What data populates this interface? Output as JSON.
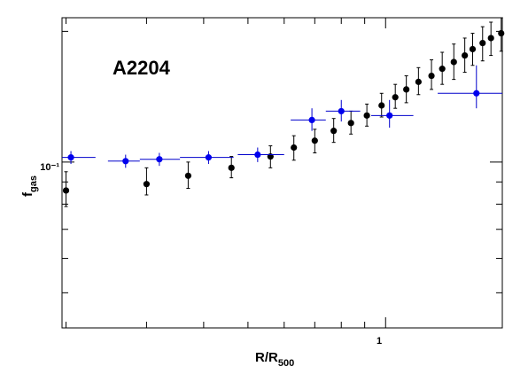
{
  "chart_data": {
    "type": "scatter",
    "annotation": "A2204",
    "xlabel": {
      "main": "R/R",
      "sub": "500"
    },
    "ylabel": {
      "main": "f",
      "sub": "gas"
    },
    "x_scale": "log",
    "y_scale": "log",
    "xlim": [
      0.196,
      1.8
    ],
    "ylim": [
      0.0415,
      0.215
    ],
    "x_tick_labels": [
      {
        "value": 1,
        "label": "1"
      }
    ],
    "y_tick_labels": [
      {
        "value": 0.1,
        "label": "10⁻¹"
      }
    ],
    "grid": false,
    "colors": {
      "series_a": "#000000",
      "series_b": "#0000ee",
      "series_b_bar": "#0000cc"
    },
    "series": [
      {
        "color": "#000000",
        "points": [
          {
            "x": 0.2,
            "y": 0.086,
            "ylo": 0.079,
            "yhi": 0.095
          },
          {
            "x": 0.3,
            "y": 0.089,
            "ylo": 0.084,
            "yhi": 0.097
          },
          {
            "x": 0.37,
            "y": 0.093,
            "ylo": 0.087,
            "yhi": 0.1
          },
          {
            "x": 0.46,
            "y": 0.097,
            "ylo": 0.092,
            "yhi": 0.103
          },
          {
            "x": 0.56,
            "y": 0.103,
            "ylo": 0.097,
            "yhi": 0.109
          },
          {
            "x": 0.63,
            "y": 0.108,
            "ylo": 0.101,
            "yhi": 0.115
          },
          {
            "x": 0.7,
            "y": 0.112,
            "ylo": 0.105,
            "yhi": 0.119
          },
          {
            "x": 0.77,
            "y": 0.118,
            "ylo": 0.111,
            "yhi": 0.126
          },
          {
            "x": 0.84,
            "y": 0.123,
            "ylo": 0.116,
            "yhi": 0.131
          },
          {
            "x": 0.91,
            "y": 0.128,
            "ylo": 0.121,
            "yhi": 0.136
          },
          {
            "x": 0.98,
            "y": 0.135,
            "ylo": 0.127,
            "yhi": 0.144
          },
          {
            "x": 1.05,
            "y": 0.141,
            "ylo": 0.133,
            "yhi": 0.151
          },
          {
            "x": 1.11,
            "y": 0.147,
            "ylo": 0.137,
            "yhi": 0.158
          },
          {
            "x": 1.18,
            "y": 0.153,
            "ylo": 0.143,
            "yhi": 0.165
          },
          {
            "x": 1.26,
            "y": 0.158,
            "ylo": 0.147,
            "yhi": 0.172
          },
          {
            "x": 1.33,
            "y": 0.164,
            "ylo": 0.151,
            "yhi": 0.179
          },
          {
            "x": 1.41,
            "y": 0.17,
            "ylo": 0.155,
            "yhi": 0.187
          },
          {
            "x": 1.49,
            "y": 0.176,
            "ylo": 0.161,
            "yhi": 0.193
          },
          {
            "x": 1.55,
            "y": 0.182,
            "ylo": 0.167,
            "yhi": 0.198
          },
          {
            "x": 1.63,
            "y": 0.188,
            "ylo": 0.171,
            "yhi": 0.205
          },
          {
            "x": 1.7,
            "y": 0.193,
            "ylo": 0.176,
            "yhi": 0.21
          },
          {
            "x": 1.79,
            "y": 0.198,
            "ylo": 0.18,
            "yhi": 0.215
          }
        ]
      },
      {
        "color": "#0000ee",
        "points": [
          {
            "x": 0.205,
            "xlo": 0.196,
            "xhi": 0.232,
            "y": 0.1025,
            "ylo": 0.099,
            "yhi": 0.106
          },
          {
            "x": 0.27,
            "xlo": 0.247,
            "xhi": 0.29,
            "y": 0.1005,
            "ylo": 0.097,
            "yhi": 0.104
          },
          {
            "x": 0.32,
            "xlo": 0.29,
            "xhi": 0.355,
            "y": 0.1015,
            "ylo": 0.098,
            "yhi": 0.105
          },
          {
            "x": 0.41,
            "xlo": 0.355,
            "xhi": 0.465,
            "y": 0.1025,
            "ylo": 0.099,
            "yhi": 0.106
          },
          {
            "x": 0.525,
            "xlo": 0.475,
            "xhi": 0.6,
            "y": 0.104,
            "ylo": 0.1,
            "yhi": 0.108
          },
          {
            "x": 0.69,
            "xlo": 0.62,
            "xhi": 0.74,
            "y": 0.125,
            "ylo": 0.118,
            "yhi": 0.133
          },
          {
            "x": 0.8,
            "xlo": 0.74,
            "xhi": 0.88,
            "y": 0.131,
            "ylo": 0.124,
            "yhi": 0.139
          },
          {
            "x": 1.02,
            "xlo": 0.93,
            "xhi": 1.15,
            "y": 0.128,
            "ylo": 0.12,
            "yhi": 0.139
          },
          {
            "x": 1.58,
            "xlo": 1.3,
            "xhi": 1.8,
            "y": 0.144,
            "ylo": 0.133,
            "yhi": 0.167
          }
        ]
      }
    ]
  }
}
